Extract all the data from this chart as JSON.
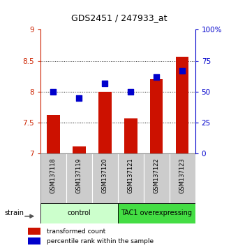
{
  "title": "GDS2451 / 247933_at",
  "samples": [
    "GSM137118",
    "GSM137119",
    "GSM137120",
    "GSM137121",
    "GSM137122",
    "GSM137123"
  ],
  "red_values": [
    7.63,
    7.12,
    8.0,
    7.57,
    8.2,
    8.57
  ],
  "blue_values": [
    50,
    45,
    57,
    50,
    62,
    67
  ],
  "ylim_left": [
    7.0,
    9.0
  ],
  "ylim_right": [
    0,
    100
  ],
  "yticks_left": [
    7.0,
    7.5,
    8.0,
    8.5,
    9.0
  ],
  "ytick_labels_left": [
    "7",
    "7.5",
    "8",
    "8.5",
    "9"
  ],
  "yticks_right": [
    0,
    25,
    50,
    75,
    100
  ],
  "ytick_labels_right": [
    "0",
    "25",
    "50",
    "75",
    "100%"
  ],
  "bar_color": "#cc1100",
  "dot_color": "#0000cc",
  "bar_bottom": 7.0,
  "bar_width": 0.5,
  "dot_size": 28,
  "grid_yticks": [
    7.5,
    8.0,
    8.5
  ],
  "legend_red": "transformed count",
  "legend_blue": "percentile rank within the sample",
  "strain_label": "strain",
  "control_color": "#ccffcc",
  "tac1_color": "#44dd44",
  "sample_box_color": "#cccccc",
  "bg_color": "#ffffff",
  "tick_color_left": "#cc2200",
  "tick_color_right": "#0000cc",
  "title_fontsize": 9,
  "tick_fontsize": 7.5,
  "group_fontsize": 7,
  "legend_fontsize": 6.5,
  "sample_fontsize": 6
}
